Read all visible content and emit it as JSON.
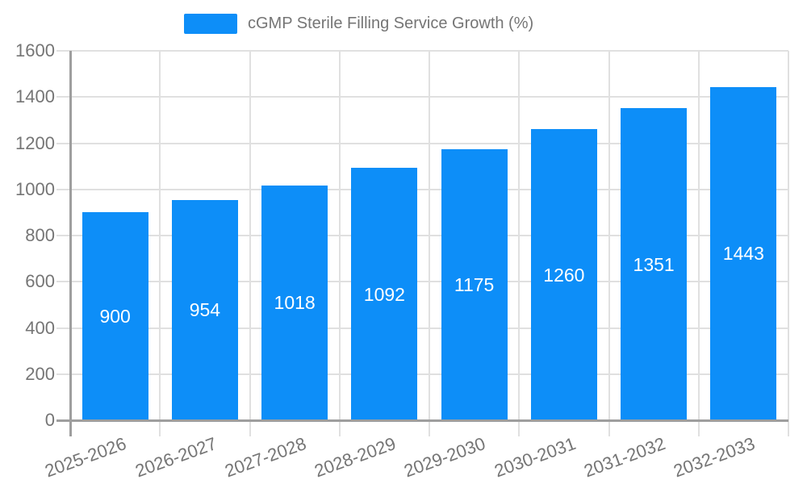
{
  "legend": {
    "series_label": "cGMP Sterile Filling Service Growth (%)"
  },
  "chart_data": {
    "type": "bar",
    "title": "cGMP Sterile Filling Service Growth (%)",
    "categories": [
      "2025-2026",
      "2026-2027",
      "2027-2028",
      "2028-2029",
      "2029-2030",
      "2030-2031",
      "2031-2032",
      "2032-2033"
    ],
    "series": [
      {
        "name": "cGMP Sterile Filling Service Growth (%)",
        "values": [
          900,
          954,
          1018,
          1092,
          1175,
          1260,
          1351,
          1443
        ]
      }
    ],
    "value_labels": [
      "900",
      "954",
      "1018",
      "1092",
      "1175",
      "1260",
      "1351",
      "1443"
    ],
    "xlabel": "",
    "ylabel": "",
    "ylim": [
      0,
      1600
    ],
    "ytick_step": 200,
    "yticks": [
      "0",
      "200",
      "400",
      "600",
      "800",
      "1000",
      "1200",
      "1400",
      "1600"
    ],
    "grid": true,
    "legend_position": "top-center",
    "colors": {
      "bar": "#0D8EF8",
      "value_label": "#ffffff",
      "axis_text": "#757575",
      "gridline": "#e0e0e0",
      "axis_line": "#9e9e9e",
      "background": "#ffffff"
    }
  }
}
